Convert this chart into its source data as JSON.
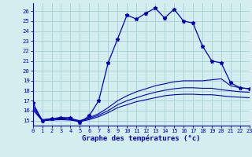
{
  "xlabel": "Graphe des températures (°c)",
  "hours": [
    0,
    1,
    2,
    3,
    4,
    5,
    6,
    7,
    8,
    9,
    10,
    11,
    12,
    13,
    14,
    15,
    16,
    17,
    18,
    19,
    20,
    21,
    22,
    23
  ],
  "temp_main": [
    16.8,
    15.0,
    15.2,
    15.3,
    15.3,
    14.8,
    15.5,
    17.0,
    20.8,
    23.2,
    25.6,
    25.2,
    25.8,
    26.3,
    25.3,
    26.2,
    25.0,
    24.8,
    22.5,
    21.0,
    20.8,
    18.8,
    18.3,
    18.2
  ],
  "temp_a": [
    16.5,
    15.1,
    15.2,
    15.3,
    15.2,
    15.0,
    15.3,
    15.7,
    16.3,
    17.0,
    17.5,
    17.9,
    18.2,
    18.5,
    18.7,
    18.9,
    19.0,
    19.0,
    19.0,
    19.1,
    19.2,
    18.5,
    18.3,
    18.2
  ],
  "temp_b": [
    16.3,
    15.0,
    15.1,
    15.2,
    15.1,
    14.95,
    15.2,
    15.55,
    16.0,
    16.6,
    17.0,
    17.3,
    17.6,
    17.85,
    18.05,
    18.2,
    18.3,
    18.3,
    18.25,
    18.25,
    18.1,
    18.0,
    17.9,
    17.85
  ],
  "temp_c": [
    16.1,
    15.0,
    15.05,
    15.1,
    15.05,
    14.9,
    15.1,
    15.4,
    15.8,
    16.3,
    16.6,
    16.9,
    17.1,
    17.3,
    17.5,
    17.6,
    17.65,
    17.65,
    17.6,
    17.6,
    17.5,
    17.4,
    17.35,
    17.3
  ],
  "bg_color": "#d4eef0",
  "grid_color": "#a8d4d8",
  "line_color": "#0000bb",
  "ylim": [
    14.5,
    26.8
  ],
  "xlim": [
    0,
    23
  ],
  "yticks": [
    15,
    16,
    17,
    18,
    19,
    20,
    21,
    22,
    23,
    24,
    25,
    26
  ],
  "xticks": [
    0,
    1,
    2,
    3,
    4,
    5,
    6,
    7,
    8,
    9,
    10,
    11,
    12,
    13,
    14,
    15,
    16,
    17,
    18,
    19,
    20,
    21,
    22,
    23
  ]
}
